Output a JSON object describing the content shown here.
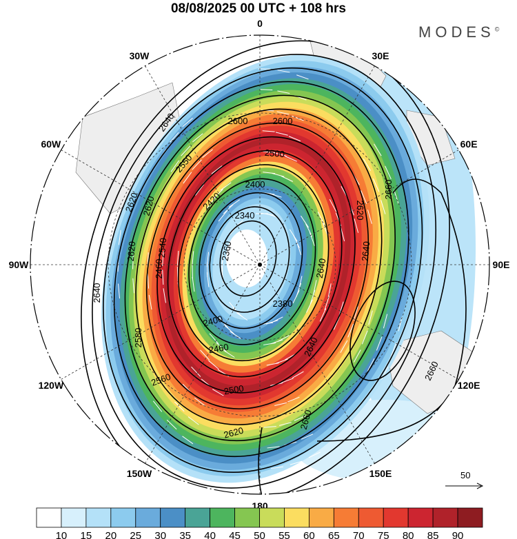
{
  "header": {
    "title": "08/08/2025  00 UTC  + 108 hrs",
    "brand": "MODES",
    "brand_mark": "©"
  },
  "map": {
    "longitude_labels": [
      {
        "label": "0",
        "deg": 0
      },
      {
        "label": "30E",
        "deg": 30
      },
      {
        "label": "60E",
        "deg": 60
      },
      {
        "label": "90E",
        "deg": 90
      },
      {
        "label": "120E",
        "deg": 120
      },
      {
        "label": "150E",
        "deg": 150
      },
      {
        "label": "180",
        "deg": 180
      },
      {
        "label": "150W",
        "deg": 210
      },
      {
        "label": "120W",
        "deg": 240
      },
      {
        "label": "90W",
        "deg": 270
      },
      {
        "label": "60W",
        "deg": 300
      },
      {
        "label": "30W",
        "deg": 330
      }
    ],
    "jet_layers": [
      15,
      20,
      25,
      30,
      35,
      40,
      45,
      50,
      55,
      60,
      65,
      70,
      75,
      80,
      85,
      80,
      75,
      65,
      55,
      45,
      40,
      35,
      30,
      25,
      20,
      15
    ],
    "contour_labels": [
      "2640",
      "2620",
      "2600",
      "2500",
      "2550",
      "2400",
      "2420",
      "2540",
      "2340",
      "2360",
      "2580",
      "2460",
      "2380",
      "2620",
      "2620",
      "2640",
      "2660",
      "2620",
      "2640",
      "2600",
      "2400",
      "2460",
      "2560",
      "2500",
      "2620",
      "2640",
      "2660",
      "2660",
      "2640"
    ],
    "vector_legend": "50"
  },
  "colorbar": {
    "colors": [
      "#ffffff",
      "#d7f0fc",
      "#b4e1f8",
      "#8ccbee",
      "#6aabdc",
      "#4b8fc6",
      "#4aa496",
      "#4db55e",
      "#85c651",
      "#c9dc5a",
      "#fbdd60",
      "#f9ab45",
      "#f67c35",
      "#ee5a32",
      "#e2382f",
      "#cc2530",
      "#b0222a",
      "#8e1c21"
    ],
    "labels": [
      "10",
      "15",
      "20",
      "25",
      "30",
      "35",
      "40",
      "45",
      "50",
      "55",
      "60",
      "65",
      "70",
      "75",
      "80",
      "85",
      "90"
    ]
  }
}
